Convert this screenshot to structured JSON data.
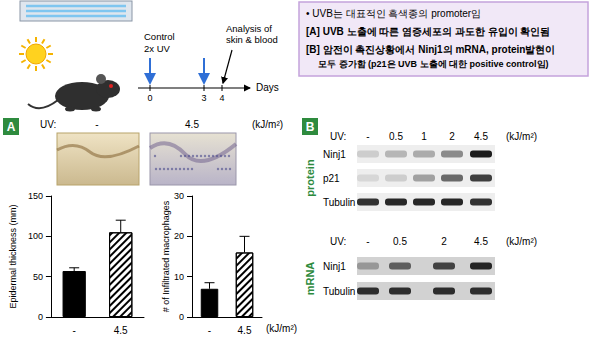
{
  "timeline": {
    "labels": [
      "Control",
      "2x UV"
    ],
    "uv_days": [
      0,
      3
    ],
    "analysis": [
      "Analysis of",
      "skin & blood"
    ],
    "analysis_day": 4,
    "days": [
      0,
      3,
      4
    ],
    "axis_label": "Days"
  },
  "notes": {
    "lines": [
      "• UVB는 대표적인 흑색종의 promoter임",
      "[A] UVB 노출에 따른 염증세포의 과도한 유입이 확인됨",
      "[B] 암전이 촉진상황에서 Ninj1의 mRNA, protein발현이",
      "모두 증가함 (p21은 UVB 노출에 대한 positive control임)"
    ]
  },
  "panel_a": {
    "label": "A",
    "uv_label": "UV:",
    "doses": [
      "-",
      "4.5"
    ],
    "unit": "(kJ/m²)"
  },
  "chart_data": [
    {
      "type": "bar",
      "ylabel": "Epidermal thickness (mm)",
      "categories": [
        "-",
        "4.5"
      ],
      "values": [
        57,
        105
      ],
      "errors": [
        4,
        15
      ],
      "colors": [
        "#000000",
        "#ffffff"
      ],
      "ylim": [
        0,
        150
      ],
      "yticks": [
        0,
        50,
        100,
        150
      ]
    },
    {
      "type": "bar",
      "ylabel": "# of Infiltrated macrophages",
      "xlabel": "(kJ/m²)",
      "categories": [
        "-",
        "4.5"
      ],
      "values": [
        7,
        16
      ],
      "errors": [
        1.5,
        4
      ],
      "colors": [
        "#000000",
        "#ffffff"
      ],
      "ylim": [
        0,
        30
      ],
      "yticks": [
        0,
        10,
        20,
        30
      ]
    }
  ],
  "panel_b": {
    "label": "B",
    "protein": {
      "title": "protein",
      "uv_label": "UV:",
      "doses": [
        "-",
        "0.5",
        "1",
        "2",
        "4.5"
      ],
      "unit": "(kJ/m²)",
      "rows": [
        {
          "name": "Ninj1",
          "bands": [
            0.15,
            0.25,
            0.3,
            0.45,
            0.95
          ]
        },
        {
          "name": "p21",
          "bands": [
            0.1,
            0.15,
            0.35,
            0.6,
            0.8
          ]
        },
        {
          "name": "Tubulin",
          "bands": [
            0.85,
            0.9,
            0.9,
            0.9,
            0.85
          ]
        }
      ]
    },
    "mrna": {
      "title": "mRNA",
      "uv_label": "UV:",
      "doses": [
        "-",
        "0.5",
        "2",
        "4.5"
      ],
      "unit": "(kJ/m²)",
      "rows": [
        {
          "name": "Ninj1",
          "bands": [
            0.3,
            0.6,
            0.75,
            0.9
          ]
        },
        {
          "name": "Tubulin",
          "bands": [
            0.85,
            0.85,
            0.85,
            0.85
          ]
        }
      ]
    }
  }
}
